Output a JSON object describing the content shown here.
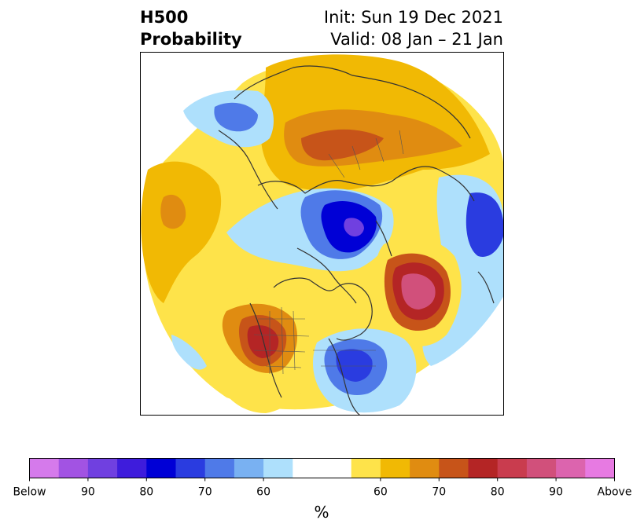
{
  "header": {
    "field": "H500",
    "product": "Probability",
    "init": "Init: Sun 19 Dec 2021",
    "valid": "Valid: 08 Jan – 21 Jan"
  },
  "colorbar": {
    "below_colors": [
      "#d57aeb",
      "#a253e3",
      "#7040e0",
      "#3e1cdc",
      "#0000d6",
      "#2a3ce0",
      "#4f7ae8",
      "#79b1f2",
      "#aee0fc"
    ],
    "neutral_color": "#ffffff",
    "above_colors": [
      "#fee34a",
      "#f1b904",
      "#e08c11",
      "#c75419",
      "#b42525",
      "#c93c4e",
      "#d1507b",
      "#dc64ae",
      "#e77ae2"
    ],
    "ticks": [
      "Below",
      "90",
      "80",
      "70",
      "60",
      "60",
      "70",
      "80",
      "90",
      "Above"
    ],
    "unit": "%"
  }
}
